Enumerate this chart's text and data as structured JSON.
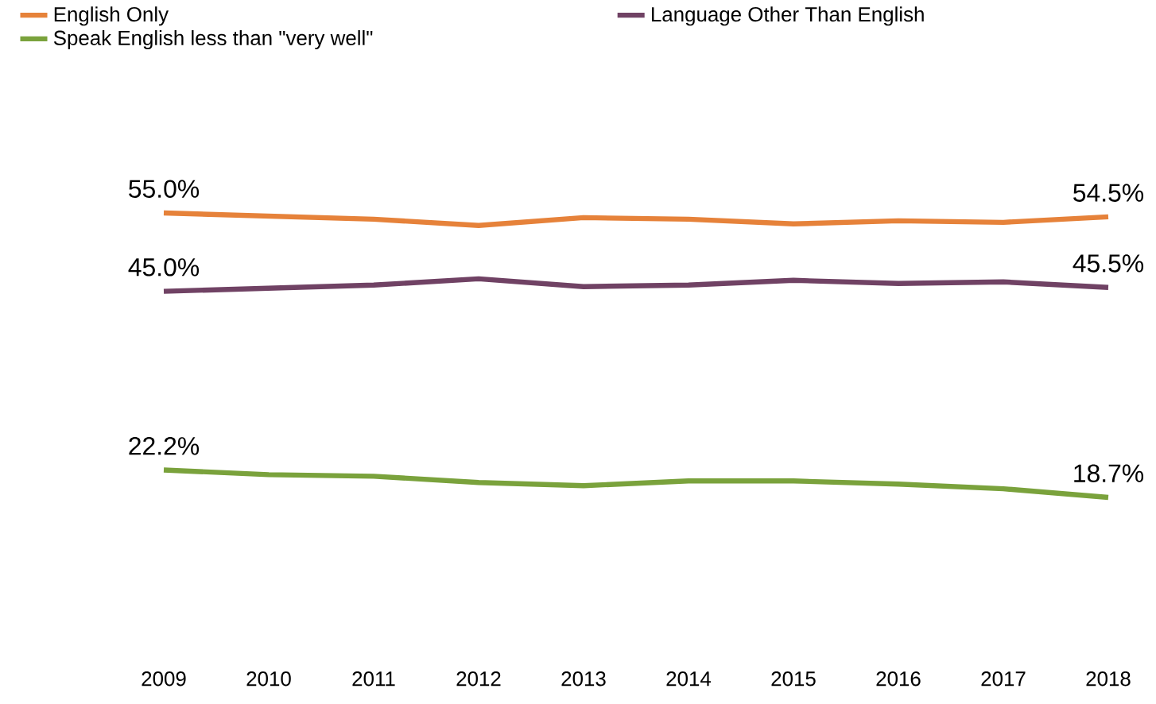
{
  "chart_data": {
    "type": "line",
    "categories": [
      "2009",
      "2010",
      "2011",
      "2012",
      "2013",
      "2014",
      "2015",
      "2016",
      "2017",
      "2018"
    ],
    "series": [
      {
        "name": "English Only",
        "color": "#e6823a",
        "values": [
          55.0,
          54.6,
          54.2,
          53.4,
          54.4,
          54.2,
          53.6,
          54.0,
          53.8,
          54.5
        ],
        "value_labels": [
          "55.0%",
          null,
          null,
          null,
          null,
          null,
          null,
          null,
          null,
          "54.5%"
        ]
      },
      {
        "name": "Language Other Than English",
        "color": "#704264",
        "values": [
          45.0,
          45.4,
          45.8,
          46.6,
          45.6,
          45.8,
          46.4,
          46.0,
          46.2,
          45.5
        ],
        "value_labels": [
          "45.0%",
          null,
          null,
          null,
          null,
          null,
          null,
          null,
          null,
          "45.5%"
        ]
      },
      {
        "name": "Speak English less than \"very well\"",
        "color": "#7aa23c",
        "values": [
          22.2,
          21.6,
          21.4,
          20.6,
          20.2,
          20.8,
          20.8,
          20.4,
          19.8,
          18.7
        ],
        "value_labels": [
          "22.2%",
          null,
          null,
          null,
          null,
          null,
          null,
          null,
          null,
          "18.7%"
        ]
      }
    ],
    "legend": "top"
  }
}
